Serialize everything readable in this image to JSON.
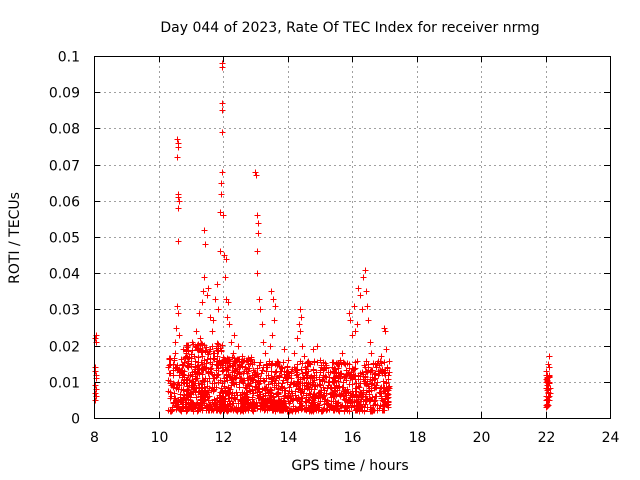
{
  "chart_data": {
    "type": "scatter",
    "title": "Day 044 of 2023, Rate Of TEC Index for receiver nrmg",
    "xlabel": "GPS time / hours",
    "ylabel": "ROTI / TECUs",
    "xlim": [
      8,
      24
    ],
    "ylim": [
      0,
      0.1
    ],
    "xticks": [
      "8",
      "10",
      "12",
      "14",
      "16",
      "18",
      "20",
      "22",
      "24"
    ],
    "yticks": [
      "0",
      "0.01",
      "0.02",
      "0.03",
      "0.04",
      "0.05",
      "0.06",
      "0.07",
      "0.08",
      "0.09",
      "0.1"
    ],
    "grid": true,
    "marker": "+",
    "color": "#ff0000",
    "series": [
      {
        "name": "ROTI",
        "points": [
          [
            8.03,
            0.005
          ],
          [
            8.04,
            0.007
          ],
          [
            8.05,
            0.006
          ],
          [
            8.03,
            0.009
          ],
          [
            8.06,
            0.011
          ],
          [
            8.04,
            0.013
          ],
          [
            8.05,
            0.012
          ],
          [
            8.07,
            0.008
          ],
          [
            8.04,
            0.022
          ],
          [
            8.06,
            0.023
          ],
          [
            8.05,
            0.021
          ],
          [
            8.03,
            0.014
          ],
          [
            10.38,
            0.006
          ],
          [
            10.42,
            0.009
          ],
          [
            10.45,
            0.012
          ],
          [
            10.48,
            0.016
          ],
          [
            10.5,
            0.021
          ],
          [
            10.52,
            0.018
          ],
          [
            10.55,
            0.014
          ],
          [
            10.58,
            0.031
          ],
          [
            10.6,
            0.029
          ],
          [
            10.62,
            0.049
          ],
          [
            10.6,
            0.058
          ],
          [
            10.62,
            0.061
          ],
          [
            10.6,
            0.062
          ],
          [
            10.64,
            0.06
          ],
          [
            10.58,
            0.072
          ],
          [
            10.6,
            0.075
          ],
          [
            10.62,
            0.076
          ],
          [
            10.58,
            0.077
          ],
          [
            10.55,
            0.025
          ],
          [
            10.65,
            0.023
          ],
          [
            10.7,
            0.01
          ],
          [
            10.75,
            0.008
          ],
          [
            10.8,
            0.013
          ],
          [
            10.85,
            0.018
          ],
          [
            10.9,
            0.012
          ],
          [
            10.95,
            0.009
          ],
          [
            11.0,
            0.015
          ],
          [
            11.05,
            0.021
          ],
          [
            11.1,
            0.017
          ],
          [
            11.15,
            0.024
          ],
          [
            11.2,
            0.011
          ],
          [
            11.25,
            0.029
          ],
          [
            11.3,
            0.022
          ],
          [
            11.35,
            0.032
          ],
          [
            11.38,
            0.035
          ],
          [
            11.4,
            0.052
          ],
          [
            11.42,
            0.039
          ],
          [
            11.45,
            0.048
          ],
          [
            11.5,
            0.034
          ],
          [
            11.55,
            0.036
          ],
          [
            11.6,
            0.028
          ],
          [
            11.65,
            0.024
          ],
          [
            11.7,
            0.027
          ],
          [
            11.75,
            0.033
          ],
          [
            11.8,
            0.037
          ],
          [
            11.85,
            0.03
          ],
          [
            11.9,
            0.046
          ],
          [
            11.92,
            0.057
          ],
          [
            11.95,
            0.062
          ],
          [
            11.97,
            0.068
          ],
          [
            11.93,
            0.065
          ],
          [
            11.96,
            0.085
          ],
          [
            11.98,
            0.087
          ],
          [
            11.97,
            0.079
          ],
          [
            11.96,
            0.097
          ],
          [
            11.97,
            0.098
          ],
          [
            11.99,
            0.056
          ],
          [
            12.02,
            0.045
          ],
          [
            12.05,
            0.039
          ],
          [
            12.08,
            0.033
          ],
          [
            12.1,
            0.044
          ],
          [
            12.12,
            0.028
          ],
          [
            12.15,
            0.032
          ],
          [
            12.2,
            0.026
          ],
          [
            12.25,
            0.021
          ],
          [
            12.3,
            0.018
          ],
          [
            12.35,
            0.023
          ],
          [
            12.4,
            0.016
          ],
          [
            12.45,
            0.02
          ],
          [
            12.5,
            0.014
          ],
          [
            12.55,
            0.011
          ],
          [
            12.6,
            0.017
          ],
          [
            12.7,
            0.013
          ],
          [
            12.8,
            0.009
          ],
          [
            12.9,
            0.015
          ],
          [
            13.0,
            0.068
          ],
          [
            13.02,
            0.067
          ],
          [
            13.05,
            0.056
          ],
          [
            13.08,
            0.051
          ],
          [
            13.06,
            0.046
          ],
          [
            13.1,
            0.054
          ],
          [
            13.04,
            0.04
          ],
          [
            13.12,
            0.033
          ],
          [
            13.15,
            0.03
          ],
          [
            13.2,
            0.026
          ],
          [
            13.25,
            0.021
          ],
          [
            13.3,
            0.018
          ],
          [
            13.35,
            0.014
          ],
          [
            13.4,
            0.012
          ],
          [
            13.45,
            0.02
          ],
          [
            13.5,
            0.035
          ],
          [
            13.55,
            0.033
          ],
          [
            13.6,
            0.031
          ],
          [
            13.58,
            0.027
          ],
          [
            13.52,
            0.023
          ],
          [
            13.62,
            0.002
          ],
          [
            13.65,
            0.011
          ],
          [
            13.7,
            0.008
          ],
          [
            13.8,
            0.014
          ],
          [
            13.9,
            0.019
          ],
          [
            14.0,
            0.016
          ],
          [
            14.1,
            0.013
          ],
          [
            14.2,
            0.018
          ],
          [
            14.3,
            0.022
          ],
          [
            14.35,
            0.026
          ],
          [
            14.4,
            0.03
          ],
          [
            14.42,
            0.028
          ],
          [
            14.38,
            0.024
          ],
          [
            14.45,
            0.02
          ],
          [
            14.5,
            0.017
          ],
          [
            14.6,
            0.012
          ],
          [
            14.7,
            0.015
          ],
          [
            14.8,
            0.019
          ],
          [
            14.9,
            0.02
          ],
          [
            15.0,
            0.016
          ],
          [
            15.1,
            0.012
          ],
          [
            15.2,
            0.014
          ],
          [
            15.3,
            0.01
          ],
          [
            15.4,
            0.013
          ],
          [
            15.5,
            0.009
          ],
          [
            15.6,
            0.015
          ],
          [
            15.7,
            0.018
          ],
          [
            15.8,
            0.012
          ],
          [
            15.9,
            0.029
          ],
          [
            15.95,
            0.027
          ],
          [
            16.0,
            0.023
          ],
          [
            16.05,
            0.031
          ],
          [
            16.1,
            0.024
          ],
          [
            16.15,
            0.026
          ],
          [
            16.2,
            0.036
          ],
          [
            16.25,
            0.034
          ],
          [
            16.3,
            0.03
          ],
          [
            16.35,
            0.039
          ],
          [
            16.4,
            0.041
          ],
          [
            16.42,
            0.035
          ],
          [
            16.45,
            0.031
          ],
          [
            16.5,
            0.027
          ],
          [
            16.55,
            0.021
          ],
          [
            16.6,
            0.018
          ],
          [
            16.7,
            0.015
          ],
          [
            16.8,
            0.012
          ],
          [
            16.9,
            0.017
          ],
          [
            17.0,
            0.025
          ],
          [
            17.02,
            0.024
          ],
          [
            17.05,
            0.019
          ],
          [
            17.08,
            0.014
          ],
          [
            17.1,
            0.008
          ],
          [
            22.02,
            0.013
          ],
          [
            22.05,
            0.009
          ],
          [
            22.07,
            0.005
          ],
          [
            22.1,
            0.01
          ],
          [
            22.08,
            0.015
          ],
          [
            22.12,
            0.017
          ],
          [
            22.1,
            0.012
          ],
          [
            22.06,
            0.004
          ],
          [
            22.09,
            0.007
          ],
          [
            22.04,
            0.011
          ],
          [
            22.11,
            0.014
          ],
          [
            22.03,
            0.006
          ]
        ],
        "bands": [
          {
            "x0": 10.3,
            "x1": 10.7,
            "ymin": 0.002,
            "ymax": 0.017,
            "n": 70
          },
          {
            "x0": 10.7,
            "x1": 12.0,
            "ymin": 0.002,
            "ymax": 0.021,
            "n": 380
          },
          {
            "x0": 12.0,
            "x1": 13.0,
            "ymin": 0.002,
            "ymax": 0.017,
            "n": 260
          },
          {
            "x0": 13.0,
            "x1": 15.0,
            "ymin": 0.002,
            "ymax": 0.016,
            "n": 430
          },
          {
            "x0": 15.0,
            "x1": 17.15,
            "ymin": 0.002,
            "ymax": 0.016,
            "n": 420
          },
          {
            "x0": 22.0,
            "x1": 22.15,
            "ymin": 0.003,
            "ymax": 0.012,
            "n": 35
          }
        ]
      }
    ]
  }
}
